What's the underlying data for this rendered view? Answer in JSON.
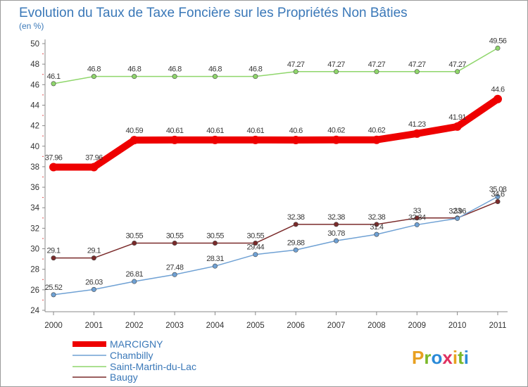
{
  "chart_data": {
    "type": "line",
    "title": "Evolution du Taux de Taxe Foncière sur les Propriétés Non Bâties",
    "ylabel": "(en %)",
    "xlabel": "",
    "ylim": [
      24,
      50
    ],
    "y_ticks": [
      "24",
      "26",
      "28",
      "30",
      "32",
      "34",
      "36",
      "38",
      "40",
      "42",
      "44",
      "46",
      "48",
      "50"
    ],
    "x": [
      "2000",
      "2001",
      "2002",
      "2003",
      "2004",
      "2005",
      "2006",
      "2007",
      "2008",
      "2009",
      "2010",
      "2011"
    ],
    "series": [
      {
        "name": "MARCIGNY",
        "color": "#ee0000",
        "values": [
          37.96,
          37.96,
          40.59,
          40.61,
          40.61,
          40.61,
          40.6,
          40.62,
          40.62,
          41.23,
          41.91,
          44.6
        ],
        "labels": [
          "37.96",
          "37.96",
          "40.59",
          "40.61",
          "40.61",
          "40.61",
          "40.6",
          "40.62",
          "40.62",
          "41.23",
          "41.91",
          "44.6"
        ]
      },
      {
        "name": "Chambilly",
        "color": "#6fa1d4",
        "values": [
          25.52,
          26.03,
          26.81,
          27.48,
          28.31,
          29.44,
          29.88,
          30.78,
          31.4,
          32.34,
          32.96,
          35.08
        ],
        "labels": [
          "25.52",
          "26.03",
          "26.81",
          "27.48",
          "28.31",
          "29.44",
          "29.88",
          "30.78",
          "31.4",
          "32.34",
          "32.96",
          "35.08"
        ]
      },
      {
        "name": "Saint-Martin-du-Lac",
        "color": "#8fd66b",
        "values": [
          46.1,
          46.8,
          46.8,
          46.8,
          46.8,
          46.8,
          47.27,
          47.27,
          47.27,
          47.27,
          47.27,
          49.56
        ],
        "labels": [
          "46.1",
          "46.8",
          "46.8",
          "46.8",
          "46.8",
          "46.8",
          "47.27",
          "47.27",
          "47.27",
          "47.27",
          "47.27",
          "49.56"
        ]
      },
      {
        "name": "Baugy",
        "color": "#7a2a2a",
        "values": [
          29.1,
          29.1,
          30.55,
          30.55,
          30.55,
          30.55,
          32.38,
          32.38,
          32.38,
          33,
          33,
          34.6
        ],
        "labels": [
          "29.1",
          "29.1",
          "30.55",
          "30.55",
          "30.55",
          "30.55",
          "32.38",
          "32.38",
          "32.38",
          "33",
          "33",
          "34.6"
        ]
      }
    ],
    "legend_position": "bottom-left",
    "grid": false
  },
  "logo": {
    "text": "Proxiti",
    "colors": [
      "#e8a020",
      "#7ab828",
      "#2a8ad8",
      "#e03060"
    ]
  }
}
